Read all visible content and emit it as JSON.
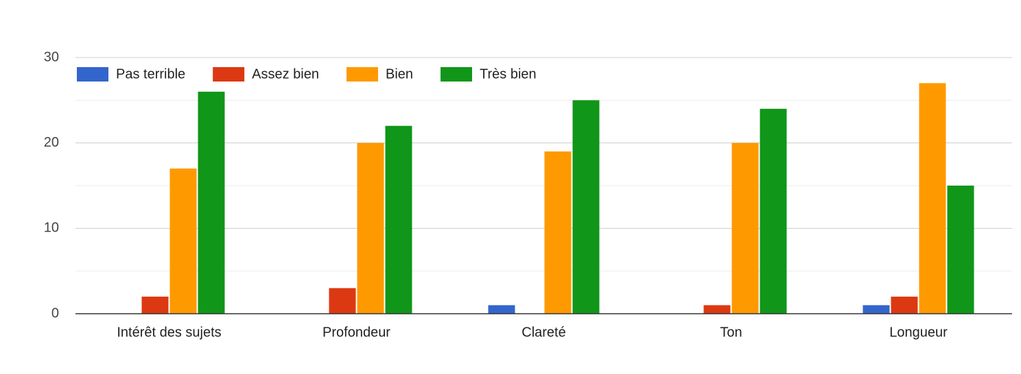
{
  "chart_data": {
    "type": "bar",
    "categories": [
      "Intérêt des sujets",
      "Profondeur",
      "Clareté",
      "Ton",
      "Longueur"
    ],
    "series": [
      {
        "name": "Pas terrible",
        "color": "#3366cc",
        "values": [
          0,
          0,
          1,
          0,
          1
        ]
      },
      {
        "name": "Assez bien",
        "color": "#dc3912",
        "values": [
          2,
          3,
          0,
          1,
          2
        ]
      },
      {
        "name": "Bien",
        "color": "#ff9900",
        "values": [
          17,
          20,
          19,
          20,
          27
        ]
      },
      {
        "name": "Très bien",
        "color": "#109618",
        "values": [
          26,
          22,
          25,
          24,
          15
        ]
      }
    ],
    "ylim": [
      0,
      30
    ],
    "yticks": [
      0,
      10,
      20,
      30
    ],
    "minor_gridlines": [
      5,
      15,
      25
    ],
    "grid": true,
    "legend": "top"
  }
}
